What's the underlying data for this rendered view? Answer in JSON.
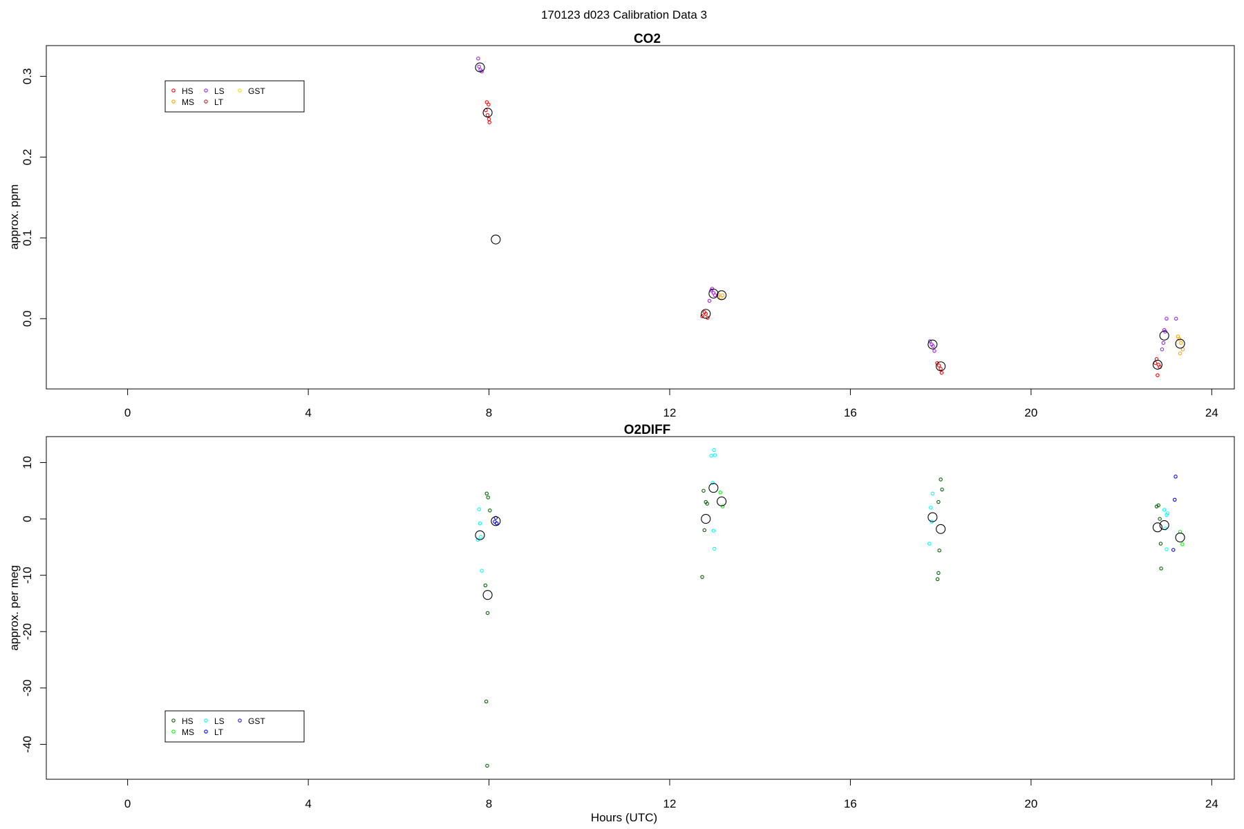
{
  "figure_title": "170123   d023   Calibration Data 3",
  "x_axis_label": "Hours (UTC)",
  "chart_data": [
    {
      "type": "scatter",
      "title": "CO2",
      "ylabel": "approx. ppm",
      "xlabel": "",
      "xlim": [
        -1.8,
        24.5
      ],
      "ylim": [
        -0.087,
        0.338
      ],
      "x_ticks": [
        "0",
        "4",
        "8",
        "12",
        "16",
        "20",
        "24"
      ],
      "y_ticks": [
        "0.0",
        "0.1",
        "0.2",
        "0.3"
      ],
      "legend": {
        "position": "top-left",
        "entries": [
          {
            "label": "HS",
            "color": "#ff0000"
          },
          {
            "label": "MS",
            "color": "#ffa500"
          },
          {
            "label": "LS",
            "color": "#a020f0"
          },
          {
            "label": "LT",
            "color": "#b22222"
          },
          {
            "label": "GST",
            "color": "#ffd700"
          }
        ]
      },
      "series": [
        {
          "name": "HS",
          "color": "#ff0000",
          "points": [
            [
              7.95,
              0.268
            ],
            [
              7.99,
              0.265
            ],
            [
              7.93,
              0.258
            ],
            [
              7.97,
              0.252
            ],
            [
              8.0,
              0.247
            ],
            [
              8.01,
              0.243
            ],
            [
              12.72,
              0.003
            ],
            [
              12.77,
              0.008
            ],
            [
              12.8,
              0.006
            ],
            [
              12.84,
              0.001
            ],
            [
              17.92,
              -0.055
            ],
            [
              17.96,
              -0.058
            ],
            [
              18.0,
              -0.062
            ],
            [
              18.02,
              -0.067
            ],
            [
              22.75,
              -0.055
            ],
            [
              22.78,
              -0.05
            ],
            [
              22.82,
              -0.057
            ],
            [
              22.85,
              -0.06
            ],
            [
              22.8,
              -0.07
            ]
          ]
        },
        {
          "name": "MS",
          "color": "#ffa500",
          "points": [
            [
              13.08,
              0.03
            ],
            [
              13.13,
              0.026
            ],
            [
              13.17,
              0.029
            ],
            [
              23.28,
              -0.025
            ],
            [
              23.32,
              -0.03
            ],
            [
              23.36,
              -0.038
            ],
            [
              23.3,
              -0.043
            ],
            [
              23.25,
              -0.022
            ]
          ]
        },
        {
          "name": "LS",
          "color": "#a020f0",
          "points": [
            [
              7.76,
              0.322
            ],
            [
              7.78,
              0.312
            ],
            [
              7.81,
              0.308
            ],
            [
              7.84,
              0.306
            ],
            [
              12.88,
              0.022
            ],
            [
              12.92,
              0.035
            ],
            [
              12.97,
              0.032
            ],
            [
              13.0,
              0.029
            ],
            [
              12.94,
              0.037
            ],
            [
              17.76,
              -0.028
            ],
            [
              17.8,
              -0.032
            ],
            [
              17.83,
              -0.034
            ],
            [
              17.86,
              -0.04
            ],
            [
              22.9,
              -0.038
            ],
            [
              22.93,
              -0.03
            ],
            [
              22.97,
              -0.016
            ],
            [
              23.0,
              0.0
            ],
            [
              22.95,
              -0.014
            ],
            [
              23.21,
              0.0
            ]
          ]
        },
        {
          "name": "LT",
          "color": "#b22222",
          "points": []
        },
        {
          "name": "GST",
          "color": "#ffd700",
          "points": []
        }
      ],
      "means": [
        [
          7.8,
          0.311
        ],
        [
          7.97,
          0.255
        ],
        [
          8.15,
          0.098
        ],
        [
          12.8,
          0.006
        ],
        [
          12.97,
          0.031
        ],
        [
          13.15,
          0.029
        ],
        [
          17.82,
          -0.032
        ],
        [
          18.0,
          -0.059
        ],
        [
          22.8,
          -0.057
        ],
        [
          22.95,
          -0.021
        ],
        [
          23.3,
          -0.031
        ]
      ]
    },
    {
      "type": "scatter",
      "title": "O2DIFF",
      "ylabel": "approx. per meg",
      "xlabel": "Hours (UTC)",
      "xlim": [
        -1.8,
        24.5
      ],
      "ylim": [
        -46.2,
        14.6
      ],
      "x_ticks": [
        "0",
        "4",
        "8",
        "12",
        "16",
        "20",
        "24"
      ],
      "y_ticks": [
        "-40",
        "-30",
        "-20",
        "-10",
        "0",
        "10"
      ],
      "legend": {
        "position": "bottom-left",
        "entries": [
          {
            "label": "HS",
            "color": "#006400"
          },
          {
            "label": "MS",
            "color": "#00ff00"
          },
          {
            "label": "LS",
            "color": "#00ffff"
          },
          {
            "label": "LT",
            "color": "#0000ff"
          },
          {
            "label": "GST",
            "color": "#1e1ecc"
          }
        ]
      },
      "series": [
        {
          "name": "HS",
          "color": "#006400",
          "points": [
            [
              7.95,
              4.5
            ],
            [
              7.98,
              3.8
            ],
            [
              8.02,
              1.5
            ],
            [
              7.92,
              -11.8
            ],
            [
              7.97,
              -16.7
            ],
            [
              7.94,
              -32.4
            ],
            [
              7.96,
              -43.8
            ],
            [
              12.75,
              5.0
            ],
            [
              12.8,
              3.0
            ],
            [
              12.83,
              2.7
            ],
            [
              12.77,
              -2.0
            ],
            [
              12.72,
              -10.3
            ],
            [
              17.95,
              3.0
            ],
            [
              18.0,
              7.0
            ],
            [
              18.03,
              5.2
            ],
            [
              17.97,
              -5.6
            ],
            [
              17.95,
              -9.6
            ],
            [
              17.93,
              -10.7
            ],
            [
              22.78,
              2.2
            ],
            [
              22.82,
              2.4
            ],
            [
              22.85,
              0.0
            ],
            [
              22.87,
              -4.4
            ],
            [
              22.88,
              -8.8
            ]
          ]
        },
        {
          "name": "MS",
          "color": "#00ff00",
          "points": [
            [
              13.12,
              4.7
            ],
            [
              13.17,
              2.2
            ],
            [
              23.3,
              -2.3
            ],
            [
              23.35,
              -4.5
            ]
          ]
        },
        {
          "name": "LS",
          "color": "#00ffff",
          "points": [
            [
              7.78,
              1.7
            ],
            [
              7.8,
              -0.8
            ],
            [
              7.82,
              -3.2
            ],
            [
              7.75,
              -3.7
            ],
            [
              7.84,
              -9.2
            ],
            [
              12.92,
              11.2
            ],
            [
              12.98,
              12.2
            ],
            [
              13.0,
              11.3
            ],
            [
              12.95,
              6.4
            ],
            [
              12.97,
              -2.1
            ],
            [
              12.99,
              -5.3
            ],
            [
              17.78,
              2.0
            ],
            [
              17.82,
              4.5
            ],
            [
              17.8,
              -0.5
            ],
            [
              17.75,
              -4.4
            ],
            [
              22.95,
              1.6
            ],
            [
              23.0,
              0.7
            ],
            [
              23.02,
              1.0
            ],
            [
              22.97,
              -1.7
            ],
            [
              23.0,
              -5.4
            ]
          ]
        },
        {
          "name": "LT",
          "color": "#0000ff",
          "points": [
            [
              8.13,
              -0.5
            ],
            [
              8.17,
              -0.8
            ],
            [
              8.15,
              0.2
            ],
            [
              23.2,
              7.5
            ],
            [
              23.18,
              3.4
            ],
            [
              23.15,
              -5.5
            ]
          ]
        },
        {
          "name": "GST",
          "color": "#1e1ecc",
          "points": []
        }
      ],
      "means": [
        [
          7.8,
          -2.9
        ],
        [
          7.97,
          -13.5
        ],
        [
          8.15,
          -0.4
        ],
        [
          12.8,
          0.0
        ],
        [
          12.97,
          5.5
        ],
        [
          13.15,
          3.1
        ],
        [
          17.82,
          0.3
        ],
        [
          18.0,
          -1.8
        ],
        [
          22.8,
          -1.5
        ],
        [
          22.95,
          -1.1
        ],
        [
          23.3,
          -3.3
        ]
      ]
    }
  ]
}
